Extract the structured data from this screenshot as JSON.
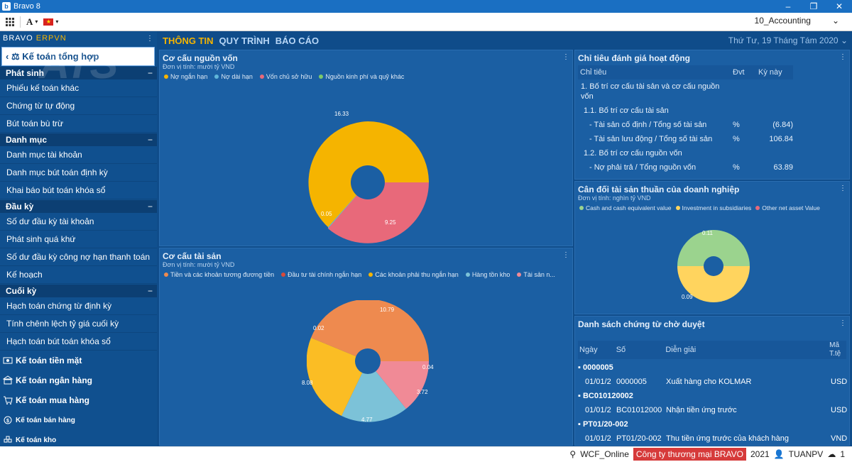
{
  "window": {
    "title": "Bravo 8"
  },
  "toolbar": {
    "database": "10_Accounting",
    "font_label": "A"
  },
  "brand": {
    "text1": "BRAVO",
    "text2": "ERPVN"
  },
  "sidebar": {
    "active_module": "Kế toán tổng hợp",
    "groups": [
      {
        "title": "Phát sinh",
        "items": [
          "Phiếu kế toán khác",
          "Chứng từ tự động",
          "Bút toán bù trừ"
        ]
      },
      {
        "title": "Danh mục",
        "items": [
          "Danh mục tài khoản",
          "Danh mục bút toán định kỳ",
          "Khai báo bút toán khóa sổ"
        ]
      },
      {
        "title": "Đầu kỳ",
        "items": [
          "Số dư đầu kỳ tài khoản",
          "Phát sinh quá khứ",
          "Số dư đầu kỳ công nợ hạn thanh toán",
          "Kế hoạch"
        ]
      },
      {
        "title": "Cuối kỳ",
        "items": [
          "Hạch toán chứng từ định kỳ",
          "Tính chênh lệch tỷ giá cuối kỳ",
          "Hạch toán bút toán khóa sổ"
        ]
      }
    ],
    "modules": [
      "Kế toán tiền mặt",
      "Kế toán ngân hàng",
      "Kế toán mua hàng",
      "Kế toán bán hàng",
      "Kế toán kho"
    ]
  },
  "tabs": [
    "THÔNG TIN",
    "QUY TRÌNH",
    "BÁO CÁO"
  ],
  "date": "Thứ Tư, 19 Tháng Tám 2020",
  "panel_capital": {
    "title": "Cơ cấu nguồn vốn",
    "unit": "Đơn vị tính: mười tỷ VND",
    "legend": [
      "Nợ ngắn hạn",
      "Nợ dài hạn",
      "Vốn chủ sở hữu",
      "Nguồn kinh phí và quỹ khác"
    ],
    "labels": [
      "16.33",
      "0.05",
      "9.25"
    ]
  },
  "panel_assets": {
    "title": "Cơ cấu tài sản",
    "unit": "Đơn vị tính: mười tỷ VND",
    "legend": [
      "Tiền và các khoản tương đương tiền",
      "Đầu tư tài chính ngắn hạn",
      "Các khoản phải thu ngắn hạn",
      "Hàng tồn kho",
      "Tài sản n..."
    ],
    "labels": [
      "10.79",
      "0.02",
      "8.08",
      "4.77",
      "3.72",
      "0.04"
    ]
  },
  "panel_kpi": {
    "title": "Chỉ tiêu đánh giá hoạt động",
    "headers": [
      "Chỉ tiêu",
      "Đvt",
      "Kỳ này"
    ],
    "rows": [
      {
        "name": "1. Bố trí cơ cấu tài sản và cơ cấu nguồn vốn",
        "unit": "",
        "value": ""
      },
      {
        "name": "1.1. Bố trí cơ cấu tài sản",
        "unit": "",
        "value": ""
      },
      {
        "name": "- Tài sản cố định / Tổng số tài sản",
        "unit": "%",
        "value": "(6.84)"
      },
      {
        "name": "- Tài sản lưu động / Tổng số tài sản",
        "unit": "%",
        "value": "106.84"
      },
      {
        "name": "1.2. Bố trí cơ cấu nguồn vốn",
        "unit": "",
        "value": ""
      },
      {
        "name": "- Nợ phải trả / Tổng nguồn vốn",
        "unit": "%",
        "value": "63.89"
      }
    ]
  },
  "panel_balance": {
    "title": "Cân đối tài sản thuần của doanh nghiệp",
    "unit": "Đơn vị tính: nghìn tỷ VND",
    "legend": [
      "Cash and cash equivalent value",
      "Investment in subsidiaries",
      "Other net asset Value"
    ],
    "labels": [
      "0.11",
      "0.09"
    ]
  },
  "panel_vouchers": {
    "title": "Danh sách chứng từ chờ duyệt",
    "headers": [
      "Ngày",
      "Số",
      "Diễn giải",
      "Mã T.tệ"
    ],
    "groups": [
      {
        "code": "0000005",
        "row": {
          "date": "01/01/2",
          "no": "0000005",
          "desc": "Xuất hàng cho KOLMAR",
          "cur": "USD"
        }
      },
      {
        "code": "BC010120002",
        "row": {
          "date": "01/01/2",
          "no": "BC01012000",
          "desc": "Nhận tiền ứng trước",
          "cur": "USD"
        }
      },
      {
        "code": "PT01/20-002",
        "row": {
          "date": "01/01/2",
          "no": "PT01/20-002",
          "desc": "Thu tiền ứng trước của khách hàng",
          "cur": "VND"
        }
      }
    ]
  },
  "status": {
    "service": "WCF_Online",
    "company": "Công ty thương mại BRAVO",
    "year": "2021",
    "user": "TUANPV",
    "count": "1"
  },
  "watermark": "ATS"
}
